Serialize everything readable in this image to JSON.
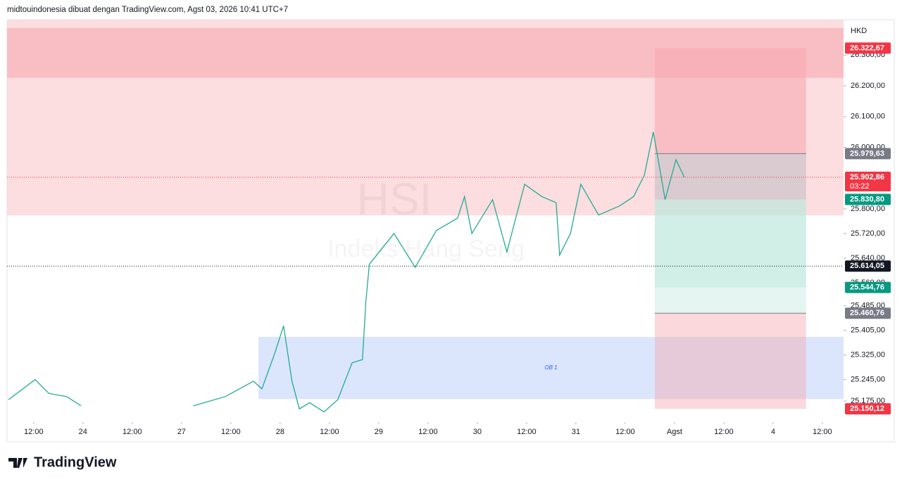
{
  "header": "midtouindonesia dibuat dengan TradingView.com, Agst 03, 2026 10:41 UTC+7",
  "footer": "TradingView",
  "chart_data": {
    "type": "line",
    "symbol": "HSI",
    "symbol_name": "Indeks Hang Seng",
    "currency": "HKD",
    "ylim": [
      25107,
      26415
    ],
    "yticks": [
      {
        "value": 26300,
        "label": "26.300,00"
      },
      {
        "value": 26200,
        "label": "26.200,00"
      },
      {
        "value": 26100,
        "label": "26.100,00"
      },
      {
        "value": 26000,
        "label": "26.000,00"
      },
      {
        "value": 25800,
        "label": "25.800,00"
      },
      {
        "value": 25720,
        "label": "25.720,00"
      },
      {
        "value": 25640,
        "label": "25.640,00"
      },
      {
        "value": 25560,
        "label": "25.560,00"
      },
      {
        "value": 25485,
        "label": "25.485,00"
      },
      {
        "value": 25405,
        "label": "25.405,00"
      },
      {
        "value": 25325,
        "label": "25.325,00"
      },
      {
        "value": 25245,
        "label": "25.245,00"
      },
      {
        "value": 25175,
        "label": "25.175,00"
      }
    ],
    "xlim": [
      -0.54,
      16.43
    ],
    "xticks": [
      {
        "value": 0,
        "label": "12:00"
      },
      {
        "value": 1,
        "label": "24"
      },
      {
        "value": 2,
        "label": "12:00"
      },
      {
        "value": 3,
        "label": "27"
      },
      {
        "value": 4,
        "label": "12:00"
      },
      {
        "value": 5,
        "label": "28"
      },
      {
        "value": 6,
        "label": "12:00"
      },
      {
        "value": 7,
        "label": "29"
      },
      {
        "value": 8,
        "label": "12:00"
      },
      {
        "value": 9,
        "label": "30"
      },
      {
        "value": 10,
        "label": "12:00"
      },
      {
        "value": 11,
        "label": "31"
      },
      {
        "value": 12,
        "label": "12:00"
      },
      {
        "value": 13,
        "label": "Agst"
      },
      {
        "value": 14,
        "label": "12:00"
      },
      {
        "value": 15,
        "label": "4"
      },
      {
        "value": 16,
        "label": "12:00"
      }
    ],
    "series": [
      {
        "color": "#22ab94",
        "x": [
          -0.51,
          0.03,
          0.31,
          0.67,
          0.96,
          null,
          3.24,
          3.89,
          4.46,
          4.63,
          4.89,
          5.07,
          5.24,
          5.39,
          5.6,
          5.89,
          6.17,
          6.46,
          6.67,
          6.74,
          6.81,
          7.31,
          7.74,
          8.17,
          8.6,
          8.74,
          8.89,
          9.31,
          9.6,
          9.96,
          10.31,
          10.6,
          10.67,
          10.89,
          11.1,
          11.46,
          11.89,
          12.17,
          12.39,
          12.57,
          12.67,
          12.81,
          13.03,
          13.2
        ],
        "values": [
          25180,
          25245,
          25200,
          25190,
          25160,
          null,
          25160,
          25190,
          25240,
          25215,
          25330,
          25420,
          25240,
          25150,
          25170,
          25140,
          25180,
          25300,
          25310,
          25500,
          25620,
          25720,
          25610,
          25730,
          25770,
          25840,
          25720,
          25830,
          25660,
          25880,
          25840,
          25820,
          25650,
          25720,
          25880,
          25780,
          25810,
          25840,
          25910,
          26050,
          25960,
          25830,
          25960,
          25903
        ]
      }
    ],
    "zones": [
      {
        "name": "resistance",
        "color": "#fcd7da",
        "top": 26415,
        "bottom": 25779
      },
      {
        "name": "resistance-core",
        "color": "#f8b8be",
        "top": 26388,
        "bottom": 26226
      },
      {
        "label": "OB 1",
        "color": "#d5e0fb",
        "top": 25384,
        "bottom": 25182,
        "x_start": 4.56
      }
    ],
    "price_labels": [
      {
        "value": 26322.67,
        "label": "26.322,67",
        "color": "#f23645"
      },
      {
        "value": 25979.63,
        "label": "25.979,63",
        "color": "#787b86"
      },
      {
        "value": 25902.86,
        "label": "25.902,86",
        "color": "#f23645",
        "countdown": "03:22"
      },
      {
        "value": 25830.8,
        "label": "25.830,80",
        "color": "#089981"
      },
      {
        "value": 25614.05,
        "label": "25.614,05",
        "color": "#131722"
      },
      {
        "value": 25544.76,
        "label": "25.544,76",
        "color": "#089981"
      },
      {
        "value": 25460.76,
        "label": "25.460,76",
        "color": "#787b86"
      },
      {
        "value": 25150.12,
        "label": "25.150,12",
        "color": "#f23645"
      }
    ],
    "position_x": [
      12.6,
      15.67
    ]
  }
}
